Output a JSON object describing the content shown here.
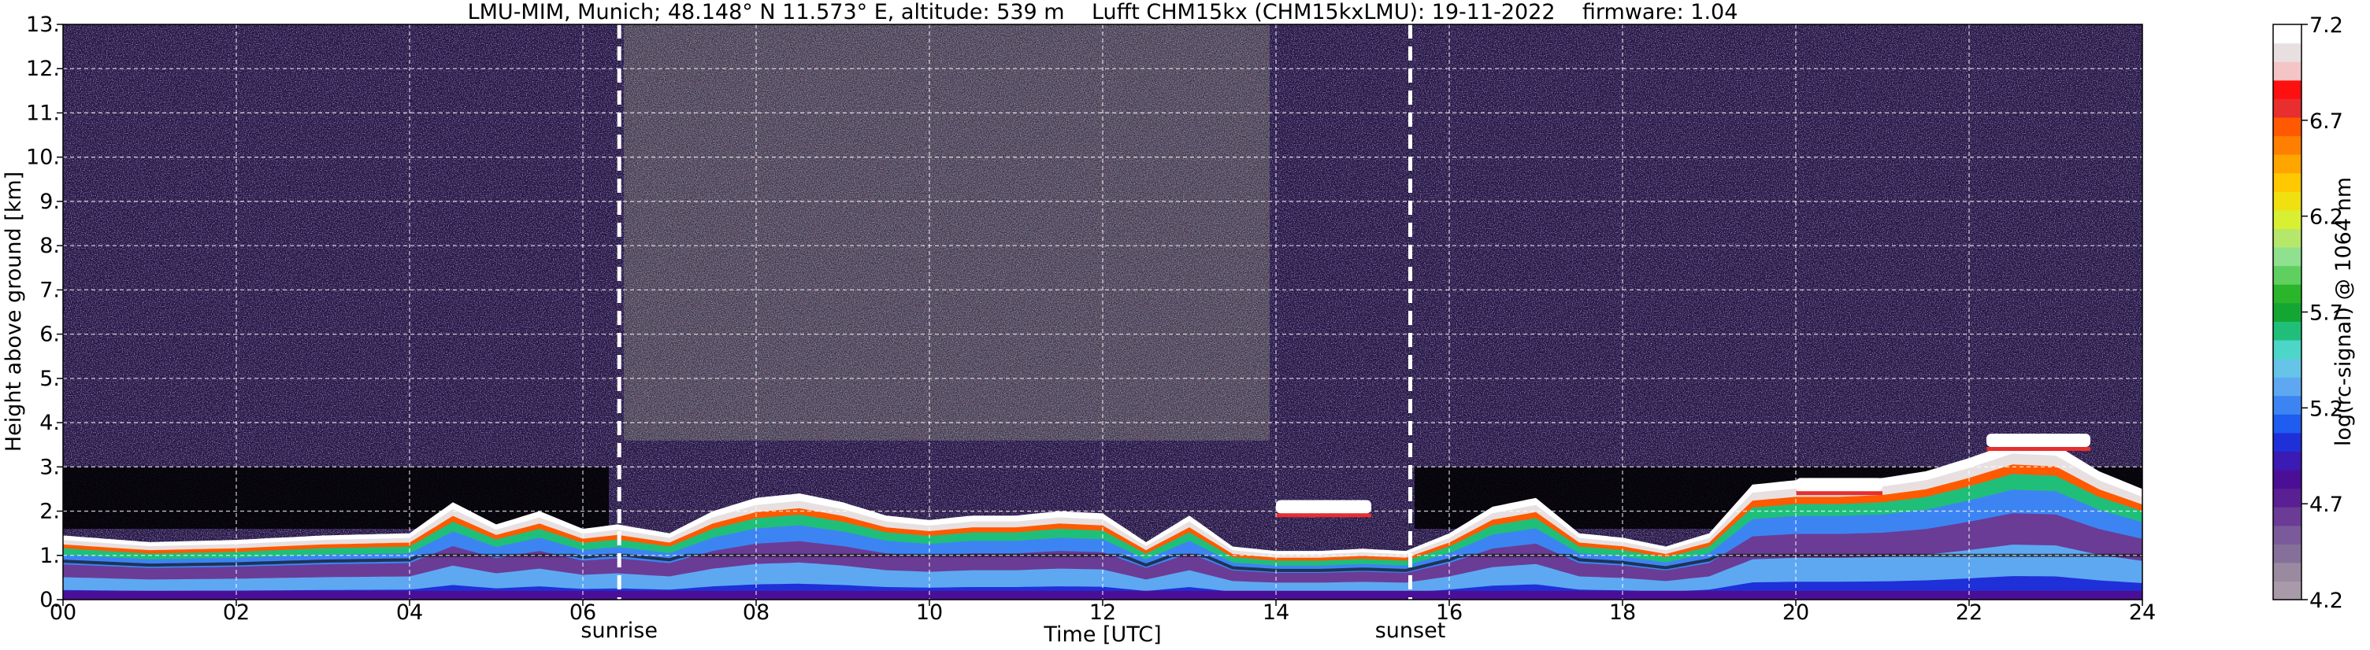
{
  "chart_data": {
    "type": "heatmap",
    "title": "LMU-MIM, Munich; 48.148° N 11.573° E, altitude: 539 m    Lufft CHM15kx (CHM15kxLMU): 19-11-2022    firmware: 1.04",
    "xlabel": "Time [UTC]",
    "ylabel": "Height above ground [km]",
    "xlim": [
      0,
      24
    ],
    "ylim": [
      0,
      13
    ],
    "x_ticks": [
      0,
      2,
      4,
      6,
      8,
      10,
      12,
      14,
      16,
      18,
      20,
      22,
      24
    ],
    "x_tick_labels": [
      "00",
      "02",
      "04",
      "06",
      "08",
      "10",
      "12",
      "14",
      "16",
      "18",
      "20",
      "22",
      "24"
    ],
    "y_ticks": [
      0,
      1,
      2,
      3,
      4,
      5,
      6,
      7,
      8,
      9,
      10,
      11,
      12,
      13
    ],
    "y_tick_labels": [
      "0.",
      "1.",
      "2.",
      "3.",
      "4.",
      "5.",
      "6.",
      "7.",
      "8.",
      "9.",
      "10.",
      "11.",
      "12.",
      "13."
    ],
    "grid": true,
    "markers": [
      {
        "label": "sunrise",
        "time": 6.42
      },
      {
        "label": "sunset",
        "time": 15.55
      }
    ],
    "colorbar": {
      "label": "log(rc-signal) @ 1064 nm",
      "range": [
        4.2,
        7.2
      ],
      "ticks": [
        4.2,
        4.7,
        5.2,
        5.7,
        6.2,
        6.7,
        7.2
      ],
      "tick_labels": [
        "4.2",
        "4.7",
        "5.2",
        "5.7",
        "6.2",
        "6.7",
        "7.2"
      ],
      "colors": [
        "#a89aa8",
        "#9a8aa0",
        "#86709a",
        "#7a5a9a",
        "#6a3c96",
        "#5a1f93",
        "#4b0f96",
        "#3c1ab4",
        "#2030d8",
        "#1f5cf0",
        "#3d84f3",
        "#5ea8f2",
        "#66c4e8",
        "#4cd6c8",
        "#1fbf7a",
        "#14a632",
        "#2bb52b",
        "#5fd05f",
        "#8fe08f",
        "#b5e86a",
        "#d8f031",
        "#f0e010",
        "#ffc800",
        "#ffa500",
        "#ff7f00",
        "#ff5a00",
        "#e82e2e",
        "#ff1010",
        "#f5c4c4",
        "#e8e0e0",
        "#ffffff"
      ]
    },
    "layers": {
      "boundary_layer_top": [
        [
          0,
          1.45
        ],
        [
          1,
          1.3
        ],
        [
          2,
          1.35
        ],
        [
          3,
          1.45
        ],
        [
          4,
          1.5
        ],
        [
          4.5,
          2.2
        ],
        [
          5,
          1.7
        ],
        [
          5.5,
          2.0
        ],
        [
          6,
          1.6
        ],
        [
          6.4,
          1.7
        ],
        [
          7,
          1.5
        ],
        [
          7.5,
          2.0
        ],
        [
          8,
          2.3
        ],
        [
          8.5,
          2.4
        ],
        [
          9,
          2.2
        ],
        [
          9.5,
          1.9
        ],
        [
          10,
          1.8
        ],
        [
          10.5,
          1.9
        ],
        [
          11,
          1.9
        ],
        [
          11.5,
          2.0
        ],
        [
          12,
          1.95
        ],
        [
          12.5,
          1.3
        ],
        [
          13,
          1.9
        ],
        [
          13.5,
          1.2
        ],
        [
          14,
          1.1
        ],
        [
          14.5,
          1.1
        ],
        [
          15,
          1.15
        ],
        [
          15.5,
          1.1
        ],
        [
          16,
          1.5
        ],
        [
          16.5,
          2.1
        ],
        [
          17,
          2.3
        ],
        [
          17.5,
          1.5
        ],
        [
          18,
          1.4
        ],
        [
          18.5,
          1.2
        ],
        [
          19,
          1.5
        ],
        [
          19.5,
          2.6
        ],
        [
          20,
          2.7
        ],
        [
          20.5,
          2.7
        ],
        [
          21,
          2.75
        ],
        [
          21.5,
          2.9
        ],
        [
          22,
          3.2
        ],
        [
          22.5,
          3.55
        ],
        [
          23,
          3.5
        ],
        [
          23.5,
          2.9
        ],
        [
          24,
          2.5
        ]
      ],
      "elevated_layers": [
        {
          "start": 14.0,
          "end": 15.1,
          "height": 2.1
        },
        {
          "start": 20.0,
          "end": 21.0,
          "height": 2.6
        },
        {
          "start": 22.2,
          "end": 23.4,
          "height": 3.6
        }
      ],
      "solar_noise_peak": [
        7.2,
        13.2
      ]
    }
  }
}
